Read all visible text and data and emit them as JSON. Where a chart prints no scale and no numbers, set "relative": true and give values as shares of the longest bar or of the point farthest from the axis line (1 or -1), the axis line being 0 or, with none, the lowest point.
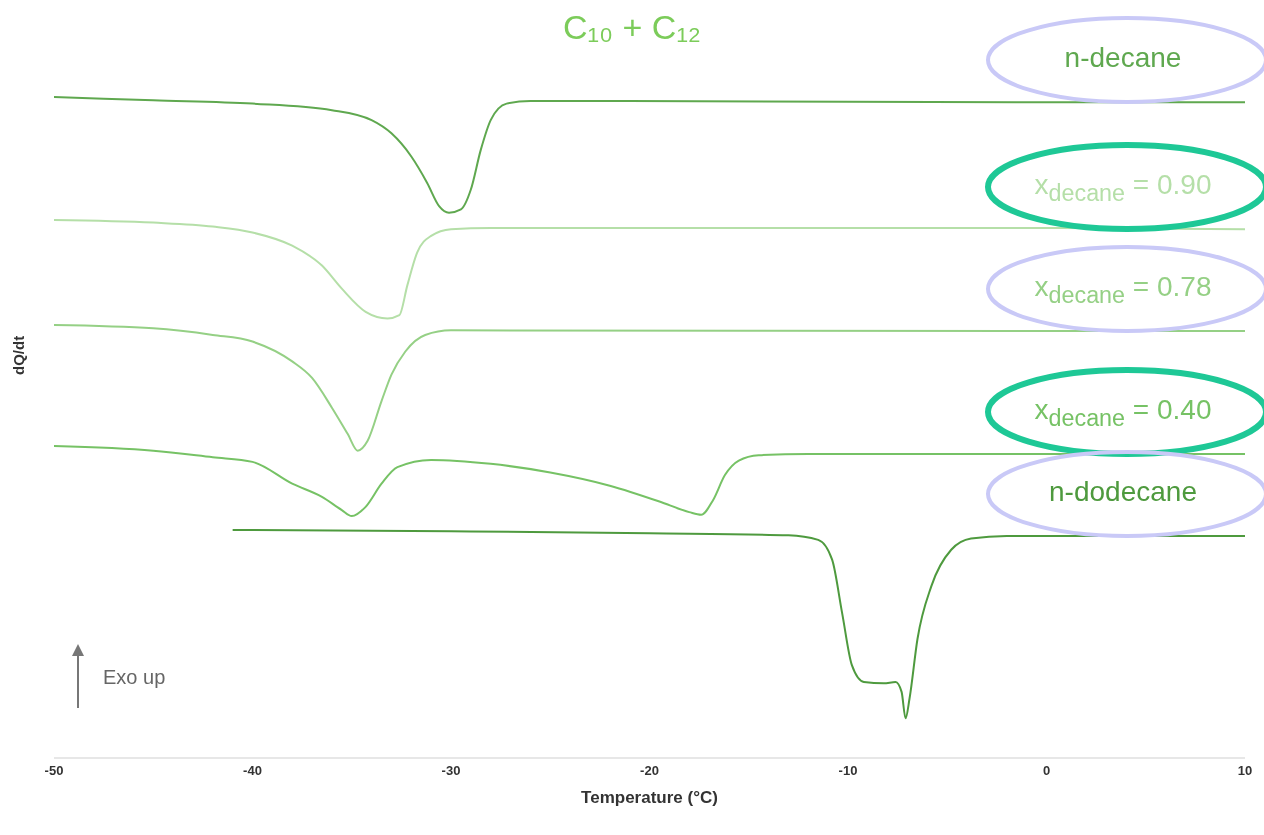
{
  "chart_data": {
    "type": "line",
    "title": "C₁₀ + C₁₂",
    "xlabel": "Temperature (°C)",
    "ylabel": "dQ/dt",
    "relative": true,
    "xlim": [
      -50,
      10
    ],
    "xticks": [
      -50,
      -40,
      -30,
      -20,
      -10,
      0,
      10
    ],
    "marker": "none",
    "line_style": "solid",
    "annotations": [
      "Exo up"
    ],
    "series": [
      {
        "name": "n-decane",
        "color": "#5fa84f",
        "x": [
          -50,
          -45,
          -40,
          -36,
          -34,
          -33,
          -32,
          -31.2,
          -30.6,
          -30.1,
          -29.5,
          -29,
          -28.5,
          -28,
          -27.2,
          -26,
          -10,
          0,
          10
        ],
        "values": [
          1.0,
          0.995,
          0.99,
          0.98,
          0.965,
          0.945,
          0.91,
          0.87,
          0.835,
          0.825,
          0.83,
          0.86,
          0.92,
          0.965,
          0.99,
          0.994,
          0.993,
          0.992,
          0.992
        ]
      },
      {
        "name": "x$_{decane}$ = 0.90",
        "color": "#b5dfa8",
        "x": [
          -50,
          -45,
          -42,
          -40,
          -38,
          -36.5,
          -35.5,
          -34.3,
          -33.2,
          -32.6,
          -32.2,
          -31.7,
          -31,
          -30,
          -28,
          0,
          10
        ],
        "values": [
          0.814,
          0.81,
          0.804,
          0.795,
          0.775,
          0.745,
          0.71,
          0.675,
          0.665,
          0.67,
          0.715,
          0.765,
          0.79,
          0.8,
          0.802,
          0.802,
          0.8
        ]
      },
      {
        "name": "x$_{decane}$ = 0.78",
        "color": "#95d085",
        "x": [
          -50,
          -45,
          -42,
          -40,
          -38,
          -37,
          -36,
          -35.2,
          -34.7,
          -34.2,
          -33.5,
          -33,
          -32.3,
          -31.3,
          -30,
          0,
          10
        ],
        "values": [
          0.655,
          0.65,
          0.64,
          0.63,
          0.6,
          0.575,
          0.53,
          0.49,
          0.465,
          0.48,
          0.54,
          0.58,
          0.615,
          0.64,
          0.647,
          0.646,
          0.646
        ]
      },
      {
        "name": "x$_{decane}$ = 0.40",
        "color": "#76c265",
        "x": [
          -50,
          -45,
          -42,
          -40,
          -38,
          -36.5,
          -35.5,
          -35,
          -34.3,
          -33.5,
          -32.7,
          -31,
          -28,
          -25,
          -22,
          -19.5,
          -18,
          -17.4,
          -16.8,
          -16.2,
          -15.5,
          -14.5,
          -12,
          10
        ],
        "values": [
          0.472,
          0.465,
          0.455,
          0.448,
          0.415,
          0.395,
          0.375,
          0.366,
          0.38,
          0.415,
          0.44,
          0.451,
          0.445,
          0.432,
          0.412,
          0.388,
          0.372,
          0.368,
          0.39,
          0.428,
          0.45,
          0.458,
          0.46,
          0.46
        ]
      },
      {
        "name": "n-dodecane",
        "color": "#4e9a3e",
        "x": [
          -41,
          -30,
          -20,
          -13,
          -11.5,
          -10.8,
          -10.3,
          -9.8,
          -9.2,
          -8.2,
          -7.6,
          -7.3,
          -7.1,
          -6.9,
          -6.5,
          -5.8,
          -4.8,
          -3.8,
          -2,
          10
        ],
        "values": [
          0.345,
          0.343,
          0.34,
          0.337,
          0.33,
          0.3,
          0.22,
          0.14,
          0.115,
          0.113,
          0.115,
          0.1,
          0.06,
          0.09,
          0.18,
          0.26,
          0.315,
          0.332,
          0.336,
          0.336
        ]
      }
    ]
  }
}
